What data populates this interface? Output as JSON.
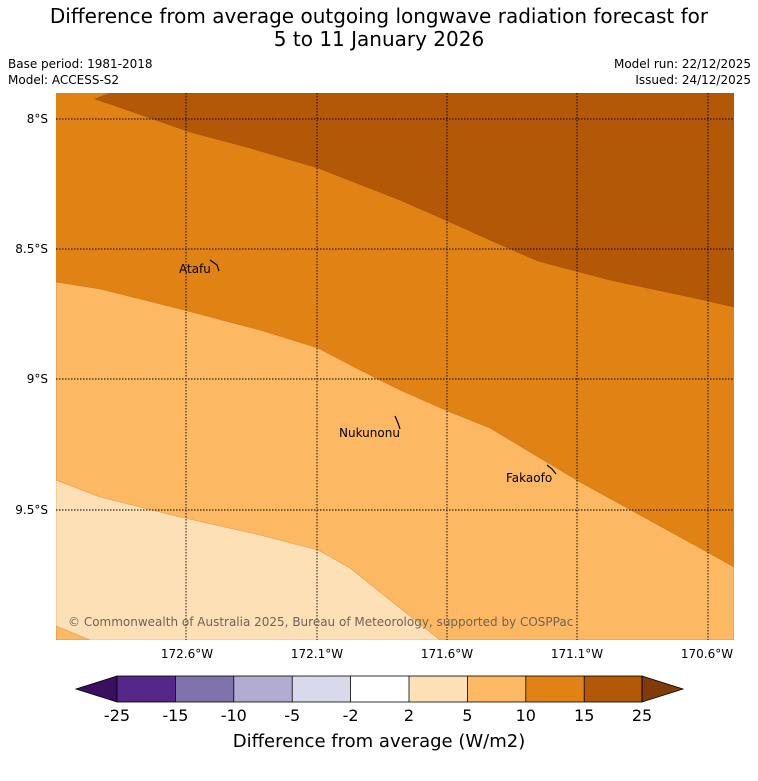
{
  "header": {
    "title_line1": "Difference from average outgoing longwave radiation forecast for",
    "title_line2": "5 to 11 January 2026",
    "base_period": "Base period: 1981-2018",
    "model": "Model: ACCESS-S2",
    "model_run": "Model run: 22/12/2025",
    "issued": "Issued: 24/12/2025"
  },
  "map": {
    "lat_ticks": [
      "8°S",
      "8.5°S",
      "9°S",
      "9.5°S"
    ],
    "lon_ticks": [
      "172.6°W",
      "172.1°W",
      "171.6°W",
      "171.1°W",
      "170.6°W"
    ],
    "places": [
      {
        "name": "Atafu"
      },
      {
        "name": "Nukunonu"
      },
      {
        "name": "Fakaofo"
      }
    ],
    "credit": "© Commonwealth of Australia 2025, Bureau of Meteorology, supported by COSPPac"
  },
  "colorbar": {
    "ticks": [
      "-25",
      "-15",
      "-10",
      "-5",
      "-2",
      "2",
      "5",
      "10",
      "15",
      "25"
    ],
    "colors": [
      "#3b0f5f",
      "#542788",
      "#8073ac",
      "#b2abd2",
      "#d8daeb",
      "#ffffff",
      "#fee0b6",
      "#fdb863",
      "#e08214",
      "#b35806",
      "#7f3b08"
    ],
    "label": "Difference from average (W/m2)"
  }
}
